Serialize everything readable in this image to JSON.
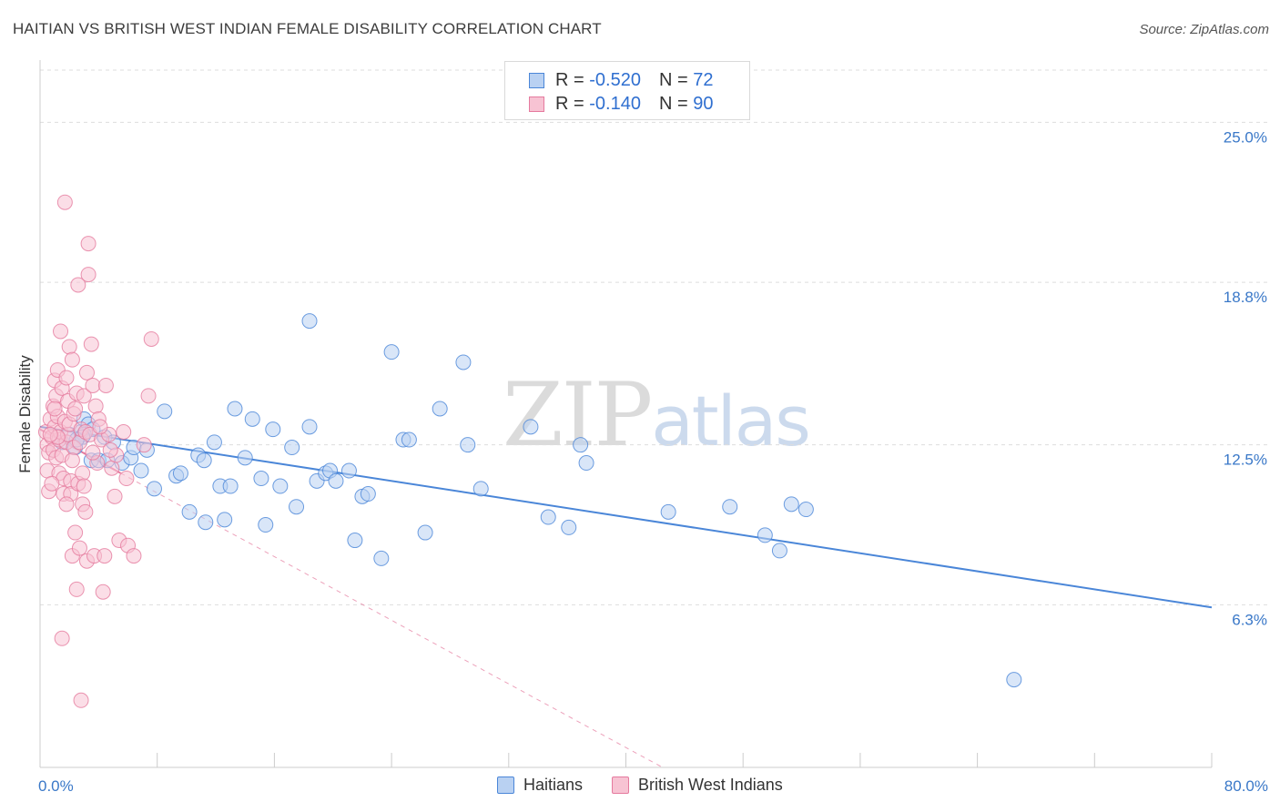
{
  "header": {
    "title": "HAITIAN VS BRITISH WEST INDIAN FEMALE DISABILITY CORRELATION CHART",
    "source": "Source: ZipAtlas.com"
  },
  "watermark": {
    "zip": "ZIP",
    "atlas": "atlas"
  },
  "legend": {
    "rows": [
      {
        "r_label": "R = ",
        "r_value": "-0.520",
        "n_label": "N = ",
        "n_value": "72",
        "color": "#4a86d8",
        "fill": "#b9d1f2"
      },
      {
        "r_label": "R = ",
        "r_value": "-0.140",
        "n_label": "N = ",
        "n_value": "90",
        "color": "#e57a9e",
        "fill": "#f7c3d3"
      }
    ]
  },
  "bottom_legend": {
    "items": [
      {
        "label": "Haitians",
        "color": "#4a86d8",
        "fill": "#b9d1f2"
      },
      {
        "label": "British West Indians",
        "color": "#e57a9e",
        "fill": "#f7c3d3"
      }
    ]
  },
  "chart_data": {
    "type": "scatter",
    "title": "HAITIAN VS BRITISH WEST INDIAN FEMALE DISABILITY CORRELATION CHART",
    "xlabel": "",
    "ylabel": "Female Disability",
    "xlim": [
      0,
      80
    ],
    "ylim": [
      0,
      27.2
    ],
    "x_tick_labels": [
      "0.0%",
      "80.0%"
    ],
    "y_ticks": [
      6.3,
      12.5,
      18.8,
      25.0
    ],
    "y_tick_labels": [
      "6.3%",
      "12.5%",
      "18.8%",
      "25.0%"
    ],
    "grid": true,
    "series": [
      {
        "name": "Haitians",
        "color": "#4a86d8",
        "fill": "#b9d1f2",
        "trend": {
          "x": [
            0,
            80
          ],
          "y": [
            13.2,
            6.2
          ],
          "style": "solid",
          "x_solid_end": 80
        },
        "points": [
          [
            1.5,
            12.6
          ],
          [
            2.0,
            12.9
          ],
          [
            2.4,
            12.4
          ],
          [
            2.8,
            13.0
          ],
          [
            3.0,
            13.5
          ],
          [
            3.3,
            13.3
          ],
          [
            3.6,
            13.1
          ],
          [
            3.0,
            12.9
          ],
          [
            2.9,
            12.8
          ],
          [
            2.5,
            12.7
          ],
          [
            3.5,
            11.9
          ],
          [
            4.0,
            11.9
          ],
          [
            4.6,
            11.9
          ],
          [
            4.4,
            12.8
          ],
          [
            5.0,
            12.6
          ],
          [
            5.6,
            11.8
          ],
          [
            6.2,
            12.0
          ],
          [
            6.4,
            12.4
          ],
          [
            6.9,
            11.5
          ],
          [
            7.3,
            12.3
          ],
          [
            7.8,
            10.8
          ],
          [
            8.5,
            13.8
          ],
          [
            9.3,
            11.3
          ],
          [
            9.6,
            11.4
          ],
          [
            10.2,
            9.9
          ],
          [
            10.8,
            12.1
          ],
          [
            11.2,
            11.9
          ],
          [
            11.3,
            9.5
          ],
          [
            11.9,
            12.6
          ],
          [
            12.3,
            10.9
          ],
          [
            12.6,
            9.6
          ],
          [
            13.0,
            10.9
          ],
          [
            13.3,
            13.9
          ],
          [
            14.0,
            12.0
          ],
          [
            14.5,
            13.5
          ],
          [
            15.1,
            11.2
          ],
          [
            15.4,
            9.4
          ],
          [
            15.9,
            13.1
          ],
          [
            16.4,
            10.9
          ],
          [
            17.2,
            12.4
          ],
          [
            17.5,
            10.1
          ],
          [
            18.4,
            13.2
          ],
          [
            18.9,
            11.1
          ],
          [
            19.5,
            11.4
          ],
          [
            19.8,
            11.5
          ],
          [
            20.2,
            11.1
          ],
          [
            21.1,
            11.5
          ],
          [
            21.5,
            8.8
          ],
          [
            22.0,
            10.5
          ],
          [
            22.4,
            10.6
          ],
          [
            23.3,
            8.1
          ],
          [
            24.0,
            16.1
          ],
          [
            24.8,
            12.7
          ],
          [
            25.2,
            12.7
          ],
          [
            26.3,
            9.1
          ],
          [
            27.3,
            13.9
          ],
          [
            28.9,
            15.7
          ],
          [
            29.2,
            12.5
          ],
          [
            30.1,
            10.8
          ],
          [
            33.5,
            13.2
          ],
          [
            34.7,
            9.7
          ],
          [
            36.1,
            9.3
          ],
          [
            36.9,
            12.5
          ],
          [
            37.3,
            11.8
          ],
          [
            42.9,
            9.9
          ],
          [
            47.1,
            10.1
          ],
          [
            49.5,
            9.0
          ],
          [
            50.5,
            8.4
          ],
          [
            51.3,
            10.2
          ],
          [
            52.3,
            10.0
          ],
          [
            66.5,
            3.4
          ],
          [
            18.4,
            17.3
          ]
        ]
      },
      {
        "name": "British West Indians",
        "color": "#e57a9e",
        "fill": "#f7c3d3",
        "trend": {
          "x": [
            0,
            42.5
          ],
          "y": [
            13.1,
            0.0
          ],
          "style": "dashed",
          "x_solid_end": 5.5
        },
        "points": [
          [
            0.4,
            13.0
          ],
          [
            0.5,
            12.5
          ],
          [
            0.6,
            12.2
          ],
          [
            0.5,
            11.5
          ],
          [
            0.6,
            10.7
          ],
          [
            0.7,
            13.5
          ],
          [
            0.8,
            12.8
          ],
          [
            0.9,
            14.0
          ],
          [
            0.9,
            12.3
          ],
          [
            1.0,
            15.0
          ],
          [
            1.0,
            13.2
          ],
          [
            1.1,
            12.0
          ],
          [
            1.1,
            14.4
          ],
          [
            1.2,
            15.4
          ],
          [
            1.2,
            13.6
          ],
          [
            1.3,
            12.7
          ],
          [
            1.3,
            11.4
          ],
          [
            1.4,
            16.9
          ],
          [
            1.4,
            13.0
          ],
          [
            1.5,
            14.7
          ],
          [
            1.5,
            12.1
          ],
          [
            1.6,
            11.2
          ],
          [
            1.6,
            10.6
          ],
          [
            1.7,
            21.9
          ],
          [
            1.7,
            13.4
          ],
          [
            1.8,
            12.6
          ],
          [
            1.8,
            15.1
          ],
          [
            1.9,
            14.2
          ],
          [
            1.9,
            12.9
          ],
          [
            2.0,
            16.3
          ],
          [
            2.0,
            13.3
          ],
          [
            2.1,
            11.1
          ],
          [
            2.1,
            10.6
          ],
          [
            2.2,
            8.2
          ],
          [
            2.2,
            15.8
          ],
          [
            2.3,
            13.7
          ],
          [
            2.3,
            12.4
          ],
          [
            2.4,
            9.1
          ],
          [
            2.4,
            13.9
          ],
          [
            2.5,
            14.5
          ],
          [
            2.6,
            11.0
          ],
          [
            2.6,
            18.7
          ],
          [
            2.7,
            8.5
          ],
          [
            2.7,
            12.6
          ],
          [
            2.8,
            13.1
          ],
          [
            2.9,
            11.4
          ],
          [
            2.9,
            10.2
          ],
          [
            3.0,
            10.9
          ],
          [
            3.0,
            14.4
          ],
          [
            3.1,
            13.0
          ],
          [
            3.2,
            8.0
          ],
          [
            3.2,
            15.3
          ],
          [
            3.3,
            20.3
          ],
          [
            3.3,
            19.1
          ],
          [
            3.4,
            12.9
          ],
          [
            3.5,
            16.4
          ],
          [
            3.6,
            14.8
          ],
          [
            3.7,
            8.2
          ],
          [
            3.8,
            14.0
          ],
          [
            3.9,
            11.8
          ],
          [
            4.0,
            13.5
          ],
          [
            4.2,
            12.7
          ],
          [
            4.3,
            6.8
          ],
          [
            4.4,
            8.2
          ],
          [
            4.5,
            14.8
          ],
          [
            4.7,
            12.9
          ],
          [
            4.9,
            11.6
          ],
          [
            5.1,
            10.5
          ],
          [
            5.4,
            8.8
          ],
          [
            5.7,
            13.0
          ],
          [
            6.0,
            8.6
          ],
          [
            5.2,
            12.1
          ],
          [
            2.5,
            6.9
          ],
          [
            2.8,
            2.6
          ],
          [
            4.1,
            13.2
          ],
          [
            3.6,
            12.2
          ],
          [
            1.2,
            12.8
          ],
          [
            1.8,
            10.2
          ],
          [
            2.2,
            11.9
          ],
          [
            0.8,
            11.0
          ],
          [
            6.4,
            8.2
          ],
          [
            7.1,
            12.5
          ],
          [
            7.4,
            14.4
          ],
          [
            7.6,
            16.6
          ],
          [
            1.5,
            5.0
          ],
          [
            3.1,
            9.9
          ],
          [
            4.8,
            12.3
          ],
          [
            5.9,
            11.2
          ],
          [
            1.0,
            13.9
          ],
          [
            0.7,
            12.9
          ]
        ]
      }
    ]
  }
}
